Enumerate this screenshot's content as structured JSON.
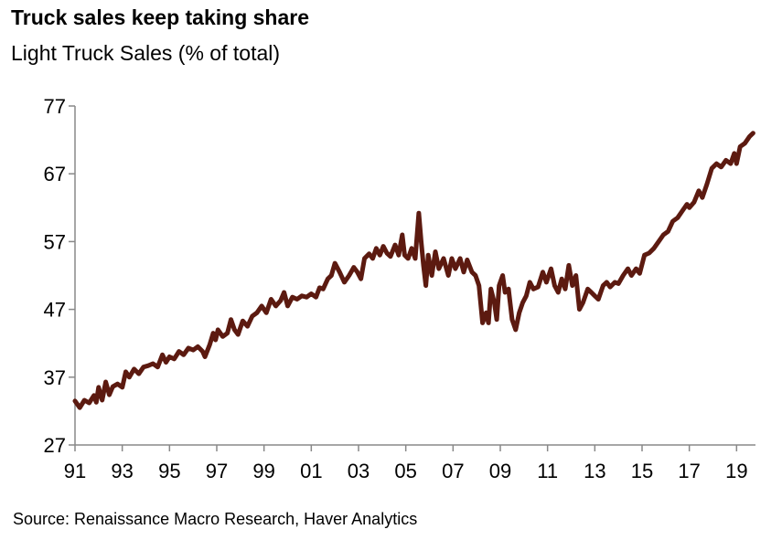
{
  "chart_data": {
    "type": "line",
    "title": "Truck sales keep taking share",
    "subtitle": "Light Truck Sales (% of total)",
    "source": "Source: Renaissance Macro Research, Haver Analytics",
    "xlabel": "",
    "ylabel": "",
    "ylim": [
      27,
      77
    ],
    "yticks": [
      27,
      37,
      47,
      57,
      67,
      77
    ],
    "xlim": [
      1991,
      2019.8
    ],
    "xticks": [
      {
        "value": 1991,
        "label": "91"
      },
      {
        "value": 1993,
        "label": "93"
      },
      {
        "value": 1995,
        "label": "95"
      },
      {
        "value": 1997,
        "label": "97"
      },
      {
        "value": 1999,
        "label": "99"
      },
      {
        "value": 2001,
        "label": "01"
      },
      {
        "value": 2003,
        "label": "03"
      },
      {
        "value": 2005,
        "label": "05"
      },
      {
        "value": 2007,
        "label": "07"
      },
      {
        "value": 2009,
        "label": "09"
      },
      {
        "value": 2011,
        "label": "11"
      },
      {
        "value": 2013,
        "label": "13"
      },
      {
        "value": 2015,
        "label": "15"
      },
      {
        "value": 2017,
        "label": "17"
      },
      {
        "value": 2019,
        "label": "19"
      }
    ],
    "grid": false,
    "legend": "none",
    "series": [
      {
        "color": "#5c1a10",
        "points": [
          [
            1991.0,
            33.5
          ],
          [
            1991.2,
            32.5
          ],
          [
            1991.4,
            33.6
          ],
          [
            1991.6,
            33.2
          ],
          [
            1991.8,
            34.3
          ],
          [
            1991.9,
            33.3
          ],
          [
            1992.0,
            35.5
          ],
          [
            1992.15,
            33.6
          ],
          [
            1992.3,
            36.3
          ],
          [
            1992.45,
            34.4
          ],
          [
            1992.6,
            35.6
          ],
          [
            1992.8,
            36.0
          ],
          [
            1993.0,
            35.5
          ],
          [
            1993.15,
            37.8
          ],
          [
            1993.3,
            37.0
          ],
          [
            1993.5,
            38.2
          ],
          [
            1993.7,
            37.5
          ],
          [
            1993.9,
            38.5
          ],
          [
            1994.1,
            38.7
          ],
          [
            1994.3,
            39.0
          ],
          [
            1994.5,
            38.5
          ],
          [
            1994.7,
            40.3
          ],
          [
            1994.85,
            39.2
          ],
          [
            1995.0,
            40.0
          ],
          [
            1995.2,
            39.7
          ],
          [
            1995.4,
            40.8
          ],
          [
            1995.6,
            40.3
          ],
          [
            1995.8,
            41.3
          ],
          [
            1996.0,
            41.0
          ],
          [
            1996.2,
            41.5
          ],
          [
            1996.4,
            40.8
          ],
          [
            1996.5,
            40.0
          ],
          [
            1996.7,
            41.8
          ],
          [
            1996.85,
            43.5
          ],
          [
            1996.95,
            42.5
          ],
          [
            1997.05,
            44.0
          ],
          [
            1997.25,
            43.0
          ],
          [
            1997.45,
            43.5
          ],
          [
            1997.6,
            45.5
          ],
          [
            1997.75,
            44.0
          ],
          [
            1997.9,
            43.3
          ],
          [
            1998.1,
            45.3
          ],
          [
            1998.3,
            44.5
          ],
          [
            1998.5,
            46.0
          ],
          [
            1998.7,
            46.5
          ],
          [
            1998.9,
            47.5
          ],
          [
            1999.1,
            46.5
          ],
          [
            1999.3,
            48.5
          ],
          [
            1999.5,
            47.5
          ],
          [
            1999.7,
            48.3
          ],
          [
            1999.85,
            49.5
          ],
          [
            2000.0,
            47.5
          ],
          [
            2000.2,
            48.8
          ],
          [
            2000.4,
            48.5
          ],
          [
            2000.6,
            49.0
          ],
          [
            2000.8,
            48.8
          ],
          [
            2001.0,
            49.3
          ],
          [
            2001.2,
            48.8
          ],
          [
            2001.35,
            50.2
          ],
          [
            2001.5,
            50.0
          ],
          [
            2001.7,
            51.5
          ],
          [
            2001.85,
            52.0
          ],
          [
            2002.0,
            53.8
          ],
          [
            2002.2,
            52.5
          ],
          [
            2002.4,
            51.0
          ],
          [
            2002.6,
            52.0
          ],
          [
            2002.8,
            53.2
          ],
          [
            2002.95,
            52.5
          ],
          [
            2003.1,
            51.5
          ],
          [
            2003.25,
            54.5
          ],
          [
            2003.45,
            55.2
          ],
          [
            2003.6,
            54.5
          ],
          [
            2003.75,
            56.0
          ],
          [
            2003.9,
            55.0
          ],
          [
            2004.05,
            56.3
          ],
          [
            2004.2,
            55.3
          ],
          [
            2004.35,
            54.8
          ],
          [
            2004.55,
            56.5
          ],
          [
            2004.7,
            55.0
          ],
          [
            2004.85,
            58.0
          ],
          [
            2004.95,
            55.0
          ],
          [
            2005.1,
            54.5
          ],
          [
            2005.25,
            56.0
          ],
          [
            2005.4,
            54.5
          ],
          [
            2005.55,
            61.2
          ],
          [
            2005.65,
            57.0
          ],
          [
            2005.75,
            53.5
          ],
          [
            2005.85,
            50.5
          ],
          [
            2005.95,
            55.0
          ],
          [
            2006.1,
            52.0
          ],
          [
            2006.25,
            55.5
          ],
          [
            2006.4,
            53.0
          ],
          [
            2006.6,
            54.5
          ],
          [
            2006.8,
            52.0
          ],
          [
            2006.95,
            54.5
          ],
          [
            2007.1,
            53.0
          ],
          [
            2007.3,
            54.5
          ],
          [
            2007.45,
            52.5
          ],
          [
            2007.6,
            54.3
          ],
          [
            2007.8,
            52.5
          ],
          [
            2007.95,
            52.0
          ],
          [
            2008.1,
            50.5
          ],
          [
            2008.25,
            45.0
          ],
          [
            2008.4,
            46.5
          ],
          [
            2008.5,
            45.0
          ],
          [
            2008.6,
            50.0
          ],
          [
            2008.75,
            48.0
          ],
          [
            2008.85,
            45.5
          ],
          [
            2008.95,
            50.5
          ],
          [
            2009.1,
            52.0
          ],
          [
            2009.2,
            49.5
          ],
          [
            2009.35,
            50.0
          ],
          [
            2009.5,
            45.5
          ],
          [
            2009.65,
            44.0
          ],
          [
            2009.8,
            46.5
          ],
          [
            2009.95,
            48.0
          ],
          [
            2010.1,
            49.0
          ],
          [
            2010.25,
            51.0
          ],
          [
            2010.4,
            50.0
          ],
          [
            2010.6,
            50.3
          ],
          [
            2010.8,
            52.5
          ],
          [
            2010.95,
            51.0
          ],
          [
            2011.15,
            53.0
          ],
          [
            2011.3,
            50.5
          ],
          [
            2011.45,
            49.5
          ],
          [
            2011.6,
            51.5
          ],
          [
            2011.75,
            50.0
          ],
          [
            2011.9,
            53.5
          ],
          [
            2012.05,
            50.5
          ],
          [
            2012.2,
            52.0
          ],
          [
            2012.35,
            47.0
          ],
          [
            2012.5,
            48.0
          ],
          [
            2012.7,
            50.0
          ],
          [
            2012.85,
            49.5
          ],
          [
            2013.0,
            49.0
          ],
          [
            2013.15,
            48.5
          ],
          [
            2013.35,
            50.5
          ],
          [
            2013.5,
            51.0
          ],
          [
            2013.65,
            50.3
          ],
          [
            2013.85,
            51.0
          ],
          [
            2014.0,
            50.8
          ],
          [
            2014.2,
            52.0
          ],
          [
            2014.4,
            53.0
          ],
          [
            2014.55,
            52.0
          ],
          [
            2014.75,
            53.0
          ],
          [
            2014.9,
            52.3
          ],
          [
            2015.1,
            55.0
          ],
          [
            2015.3,
            55.3
          ],
          [
            2015.5,
            56.0
          ],
          [
            2015.7,
            57.0
          ],
          [
            2015.9,
            58.0
          ],
          [
            2016.1,
            58.5
          ],
          [
            2016.3,
            60.0
          ],
          [
            2016.5,
            60.5
          ],
          [
            2016.7,
            61.5
          ],
          [
            2016.9,
            62.5
          ],
          [
            2017.0,
            62.0
          ],
          [
            2017.2,
            62.8
          ],
          [
            2017.4,
            64.5
          ],
          [
            2017.55,
            63.5
          ],
          [
            2017.75,
            65.5
          ],
          [
            2017.95,
            67.8
          ],
          [
            2018.15,
            68.5
          ],
          [
            2018.35,
            68.0
          ],
          [
            2018.55,
            69.0
          ],
          [
            2018.75,
            68.5
          ],
          [
            2018.9,
            70.0
          ],
          [
            2019.0,
            68.5
          ],
          [
            2019.15,
            71.0
          ],
          [
            2019.35,
            71.5
          ],
          [
            2019.55,
            72.5
          ],
          [
            2019.7,
            73.0
          ]
        ]
      }
    ]
  }
}
